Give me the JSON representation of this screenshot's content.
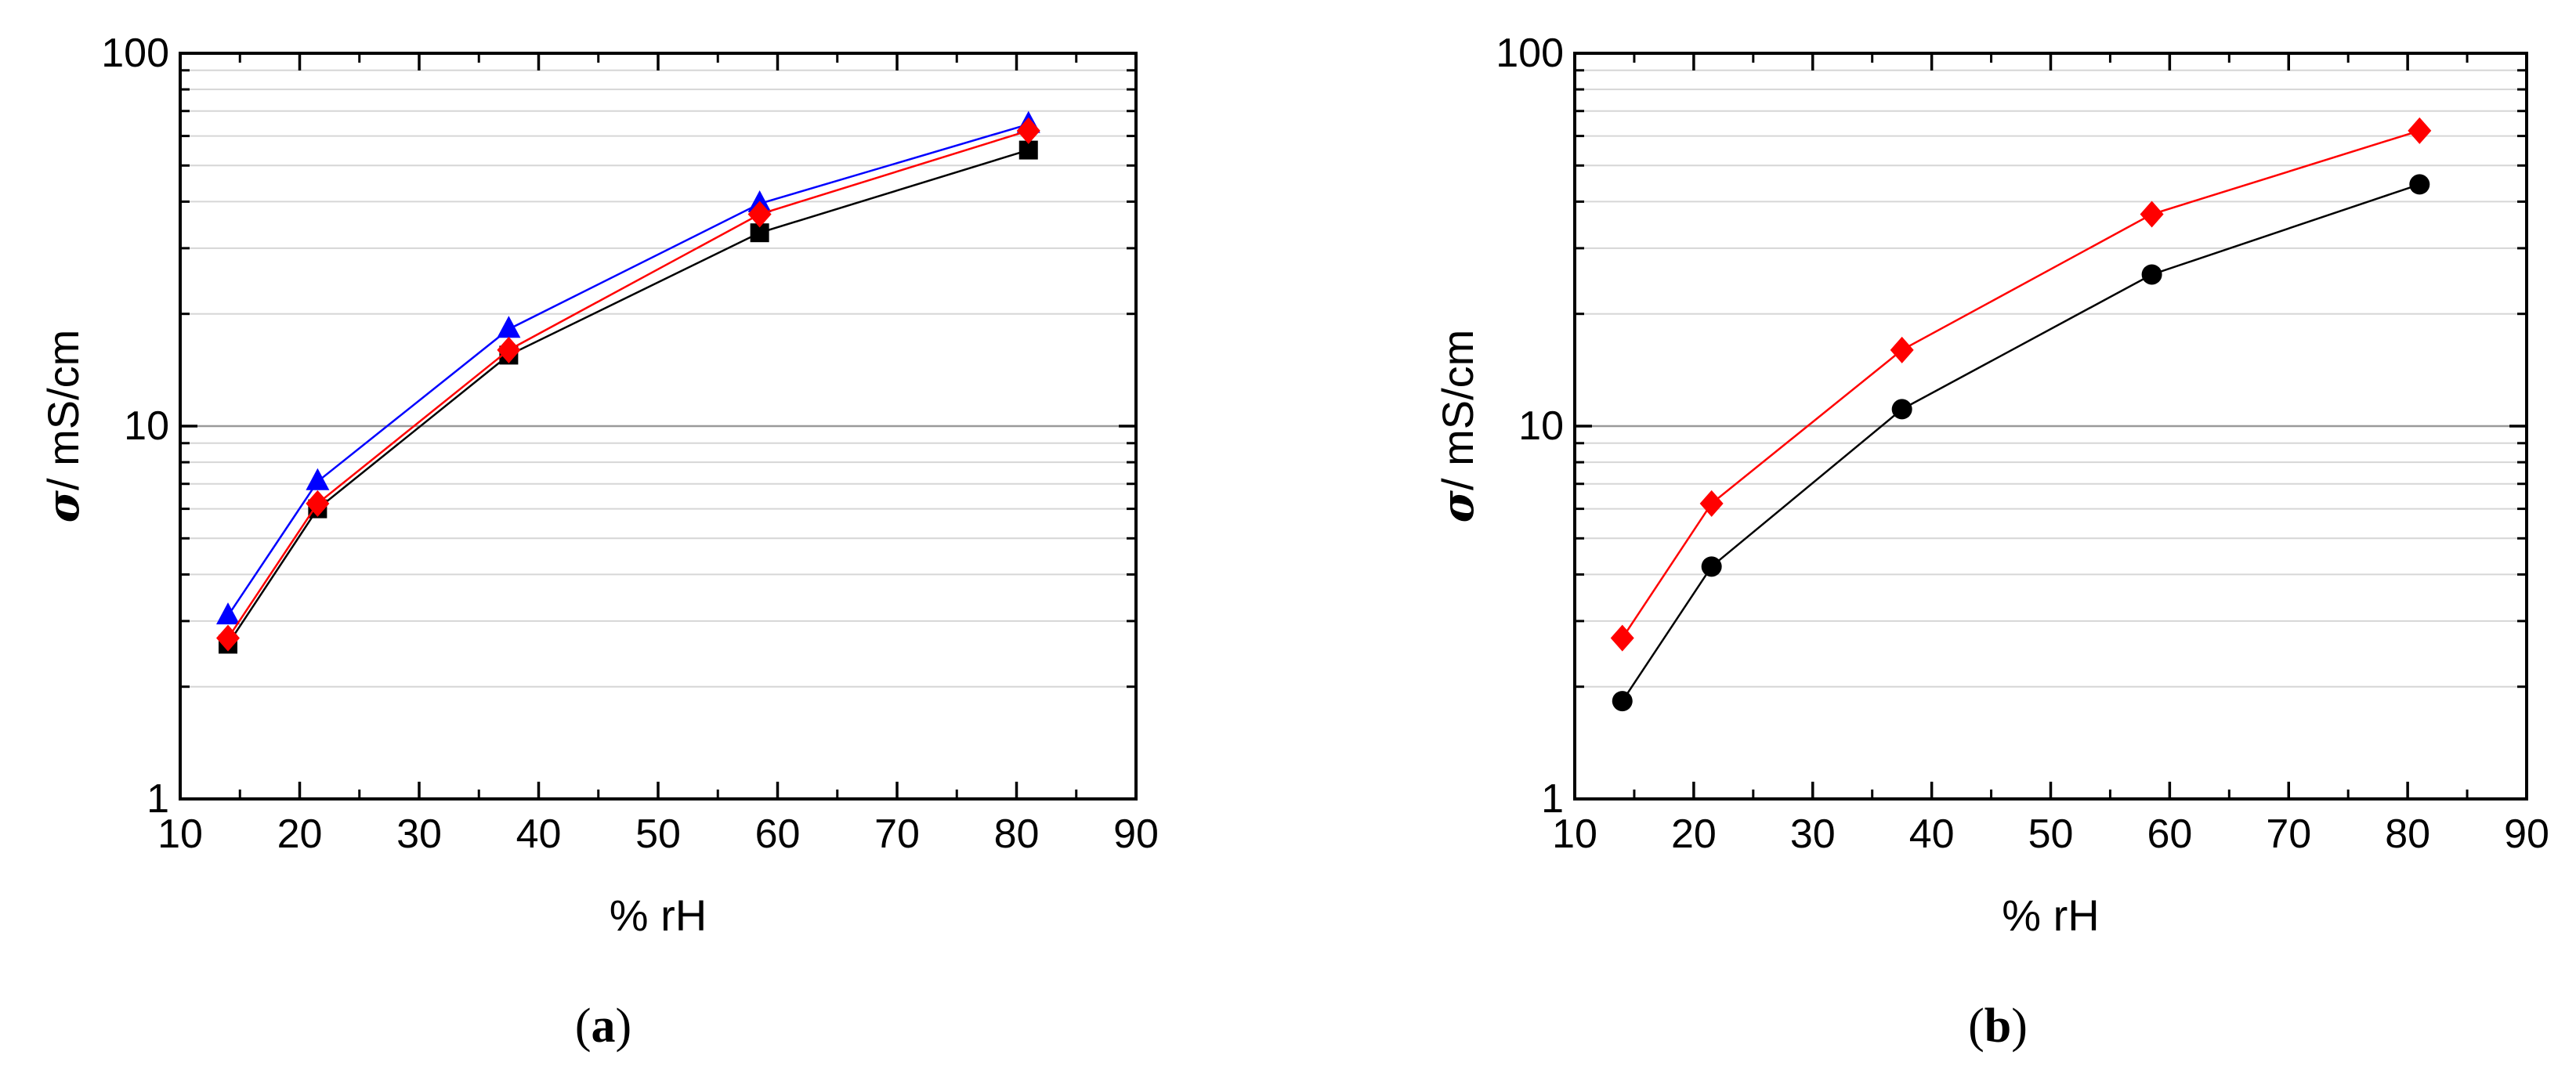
{
  "chart_data": [
    {
      "type": "line",
      "panel_label": "a",
      "xlabel": "% rH",
      "ylabel": {
        "symbol": "σ",
        "unit": "/ mS/cm"
      },
      "xlim": [
        10,
        90
      ],
      "ylim": [
        1,
        100
      ],
      "yscale": "log",
      "xticks": [
        "10",
        "20",
        "30",
        "40",
        "50",
        "60",
        "70",
        "80",
        "90"
      ],
      "yticks": [
        "1",
        "10",
        "100"
      ],
      "grid": "horizontal",
      "x": [
        14,
        21.5,
        37.5,
        58.5,
        81
      ],
      "series": [
        {
          "name": "black squares",
          "color": "#000000",
          "marker": "square",
          "values": [
            2.6,
            6.0,
            15.5,
            33.0,
            55.0
          ]
        },
        {
          "name": "blue triangles",
          "color": "#0000ff",
          "marker": "triangle",
          "values": [
            3.1,
            7.1,
            18.2,
            39.5,
            64.5
          ]
        },
        {
          "name": "red diamonds",
          "color": "#ff0000",
          "marker": "diamond",
          "values": [
            2.7,
            6.2,
            16.0,
            37.0,
            62.0
          ]
        }
      ]
    },
    {
      "type": "line",
      "panel_label": "b",
      "xlabel": "% rH",
      "ylabel": {
        "symbol": "σ",
        "unit": "/ mS/cm"
      },
      "xlim": [
        10,
        90
      ],
      "ylim": [
        1,
        100
      ],
      "yscale": "log",
      "xticks": [
        "10",
        "20",
        "30",
        "40",
        "50",
        "60",
        "70",
        "80",
        "90"
      ],
      "yticks": [
        "1",
        "10",
        "100"
      ],
      "grid": "horizontal",
      "x": [
        14,
        21.5,
        37.5,
        58.5,
        81
      ],
      "series": [
        {
          "name": "black circles",
          "color": "#000000",
          "marker": "circle",
          "values": [
            1.83,
            4.2,
            11.1,
            25.5,
            44.5
          ]
        },
        {
          "name": "red diamonds",
          "color": "#ff0000",
          "marker": "diamond",
          "values": [
            2.7,
            6.2,
            16.0,
            37.0,
            62.0
          ]
        }
      ]
    }
  ]
}
